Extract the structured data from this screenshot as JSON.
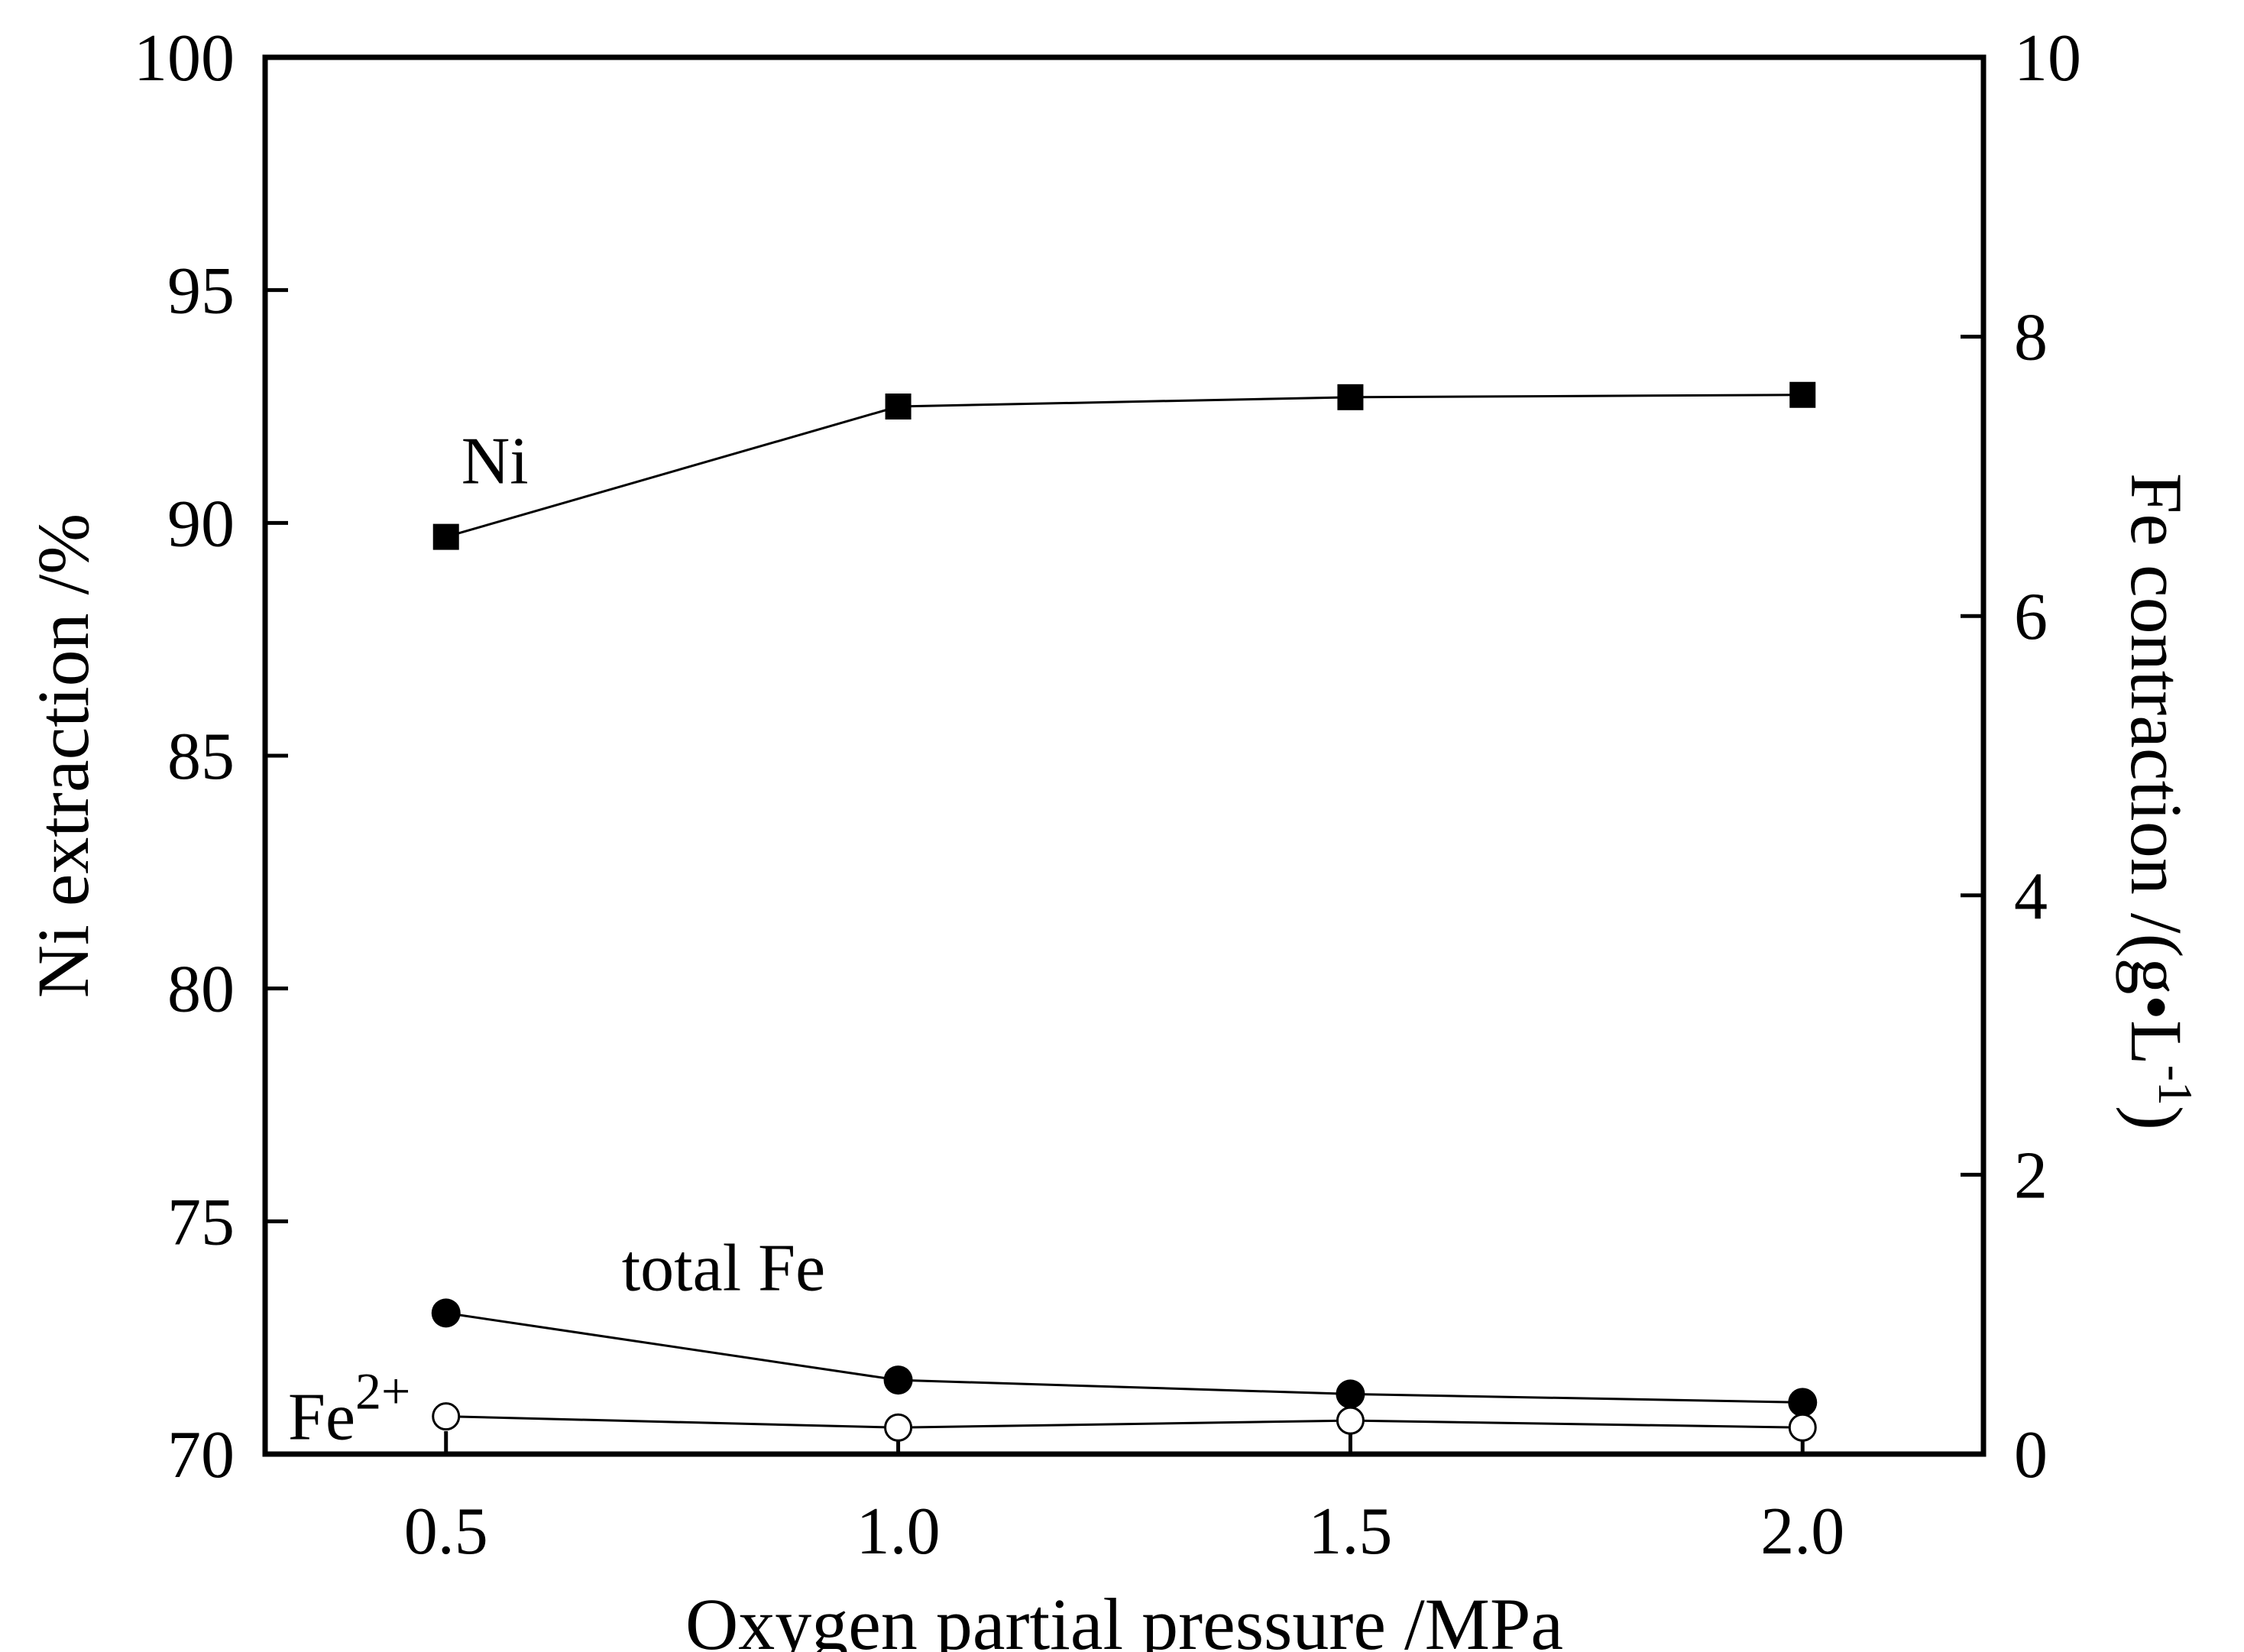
{
  "chart_data": {
    "type": "line",
    "title": "",
    "xlabel": "Oxygen partial pressure /MPa",
    "ylabel": "Ni extraction /%",
    "y2label": "Fe contraction /(g•L",
    "y2label_sup": "-1",
    "y2label_close": ")",
    "x": [
      0.5,
      1.0,
      1.5,
      2.0
    ],
    "xlim": [
      0.3,
      2.2
    ],
    "ylim": [
      70,
      100
    ],
    "y2lim": [
      0,
      10
    ],
    "xticks": [
      "0.5",
      "1.0",
      "1.5",
      "2.0"
    ],
    "yticks": [
      "70",
      "75",
      "80",
      "85",
      "90",
      "95",
      "100"
    ],
    "y2ticks": [
      "0",
      "2",
      "4",
      "6",
      "8",
      "10"
    ],
    "grid": false,
    "legend": "none",
    "series": [
      {
        "name": "Ni",
        "axis": "left",
        "marker": "filled-square",
        "values": [
          89.7,
          92.5,
          92.7,
          92.75
        ]
      },
      {
        "name": "total Fe",
        "axis": "right",
        "marker": "filled-circle",
        "values": [
          1.01,
          0.53,
          0.43,
          0.37
        ]
      },
      {
        "name": "Fe2+",
        "axis": "right",
        "marker": "open-circle",
        "values": [
          0.27,
          0.19,
          0.24,
          0.19
        ]
      }
    ],
    "annotations": [
      {
        "text": "Ni",
        "series": "Ni"
      },
      {
        "text": "total Fe",
        "series": "total Fe"
      },
      {
        "text": "Fe",
        "sup": "2+",
        "series": "Fe2+"
      }
    ]
  }
}
